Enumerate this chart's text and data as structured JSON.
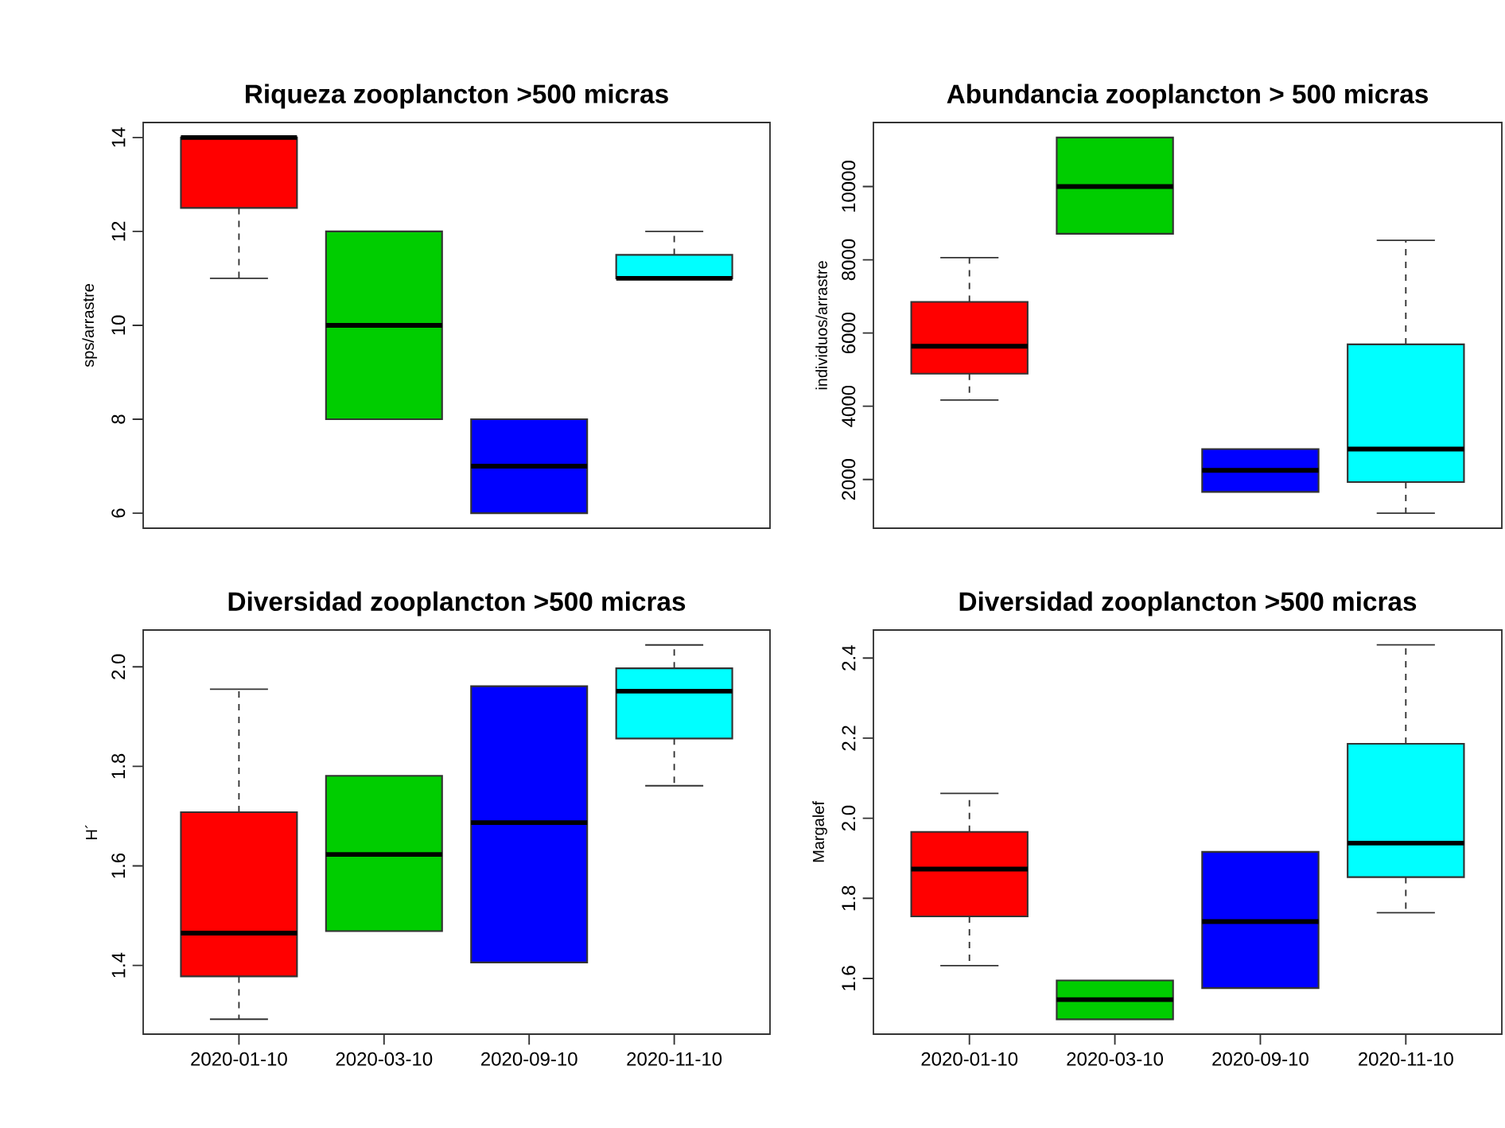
{
  "chart_data": [
    {
      "type": "box",
      "title": "Riqueza zooplancton >500 micras",
      "ylabel": "sps/arrastre",
      "categories": [
        "2020-01-10",
        "2020-03-10",
        "2020-09-10",
        "2020-11-10"
      ],
      "tick_labels": "y",
      "colors": [
        "#ff0000",
        "#00cd00",
        "#0000ff",
        "#00ffff"
      ],
      "ylim": [
        5.68,
        14.32
      ],
      "yticks": [
        6,
        8,
        10,
        12,
        14
      ],
      "boxes": [
        {
          "low": 11,
          "q1": 12.5,
          "median": 14,
          "q3": 14,
          "high": 14
        },
        {
          "low": 8,
          "q1": 8,
          "median": 10,
          "q3": 12,
          "high": 12
        },
        {
          "low": 6,
          "q1": 6,
          "median": 7,
          "q3": 8,
          "high": 8
        },
        {
          "low": 11,
          "q1": 11,
          "median": 11,
          "q3": 11.5,
          "high": 12
        }
      ]
    },
    {
      "type": "box",
      "title": "Abundancia zooplancton > 500 micras",
      "ylabel": "individuos/arrastre",
      "categories": [
        "2020-01-10",
        "2020-03-10",
        "2020-09-10",
        "2020-11-10"
      ],
      "tick_labels": "y",
      "colors": [
        "#ff0000",
        "#00cd00",
        "#0000ff",
        "#00ffff"
      ],
      "ylim": [
        670,
        11750
      ],
      "yticks": [
        2000,
        4000,
        6000,
        8000,
        10000
      ],
      "boxes": [
        {
          "low": 4170,
          "q1": 4890,
          "median": 5640,
          "q3": 6850,
          "high": 8060
        },
        {
          "low": 8710,
          "q1": 8710,
          "median": 10000,
          "q3": 11340,
          "high": 11340
        },
        {
          "low": 1660,
          "q1": 1660,
          "median": 2250,
          "q3": 2830,
          "high": 2830
        },
        {
          "low": 1080,
          "q1": 1930,
          "median": 2830,
          "q3": 5690,
          "high": 8530
        }
      ]
    },
    {
      "type": "box",
      "title": "Diversidad zooplancton >500 micras",
      "ylabel": "H´",
      "categories": [
        "2020-01-10",
        "2020-03-10",
        "2020-09-10",
        "2020-11-10"
      ],
      "colors": [
        "#ff0000",
        "#00cd00",
        "#0000ff",
        "#00ffff"
      ],
      "ylim": [
        1.262,
        2.074
      ],
      "yticks": [
        1.4,
        1.6,
        1.8,
        {
          "value": 2,
          "label": "2.0"
        }
      ],
      "boxes": [
        {
          "low": 1.292,
          "q1": 1.378,
          "median": 1.465,
          "q3": 1.708,
          "high": 1.955
        },
        {
          "low": 1.469,
          "q1": 1.469,
          "median": 1.623,
          "q3": 1.781,
          "high": 1.781
        },
        {
          "low": 1.406,
          "q1": 1.406,
          "median": 1.687,
          "q3": 1.961,
          "high": 1.961
        },
        {
          "low": 1.761,
          "q1": 1.856,
          "median": 1.951,
          "q3": 1.997,
          "high": 2.044
        }
      ]
    },
    {
      "type": "box",
      "title": "Diversidad zooplancton >500 micras",
      "ylabel": "Margalef",
      "categories": [
        "2020-01-10",
        "2020-03-10",
        "2020-09-10",
        "2020-11-10"
      ],
      "colors": [
        "#ff0000",
        "#00cd00",
        "#0000ff",
        "#00ffff"
      ],
      "ylim": [
        1.461,
        2.47
      ],
      "yticks": [
        1.6,
        1.8,
        {
          "value": 2,
          "label": "2.0"
        },
        2.2,
        2.4
      ],
      "boxes": [
        {
          "low": 1.632,
          "q1": 1.755,
          "median": 1.873,
          "q3": 1.966,
          "high": 2.062
        },
        {
          "low": 1.498,
          "q1": 1.498,
          "median": 1.547,
          "q3": 1.595,
          "high": 1.595
        },
        {
          "low": 1.576,
          "q1": 1.576,
          "median": 1.742,
          "q3": 1.916,
          "high": 1.916
        },
        {
          "low": 1.764,
          "q1": 1.853,
          "median": 1.938,
          "q3": 2.186,
          "high": 2.433
        }
      ]
    }
  ]
}
